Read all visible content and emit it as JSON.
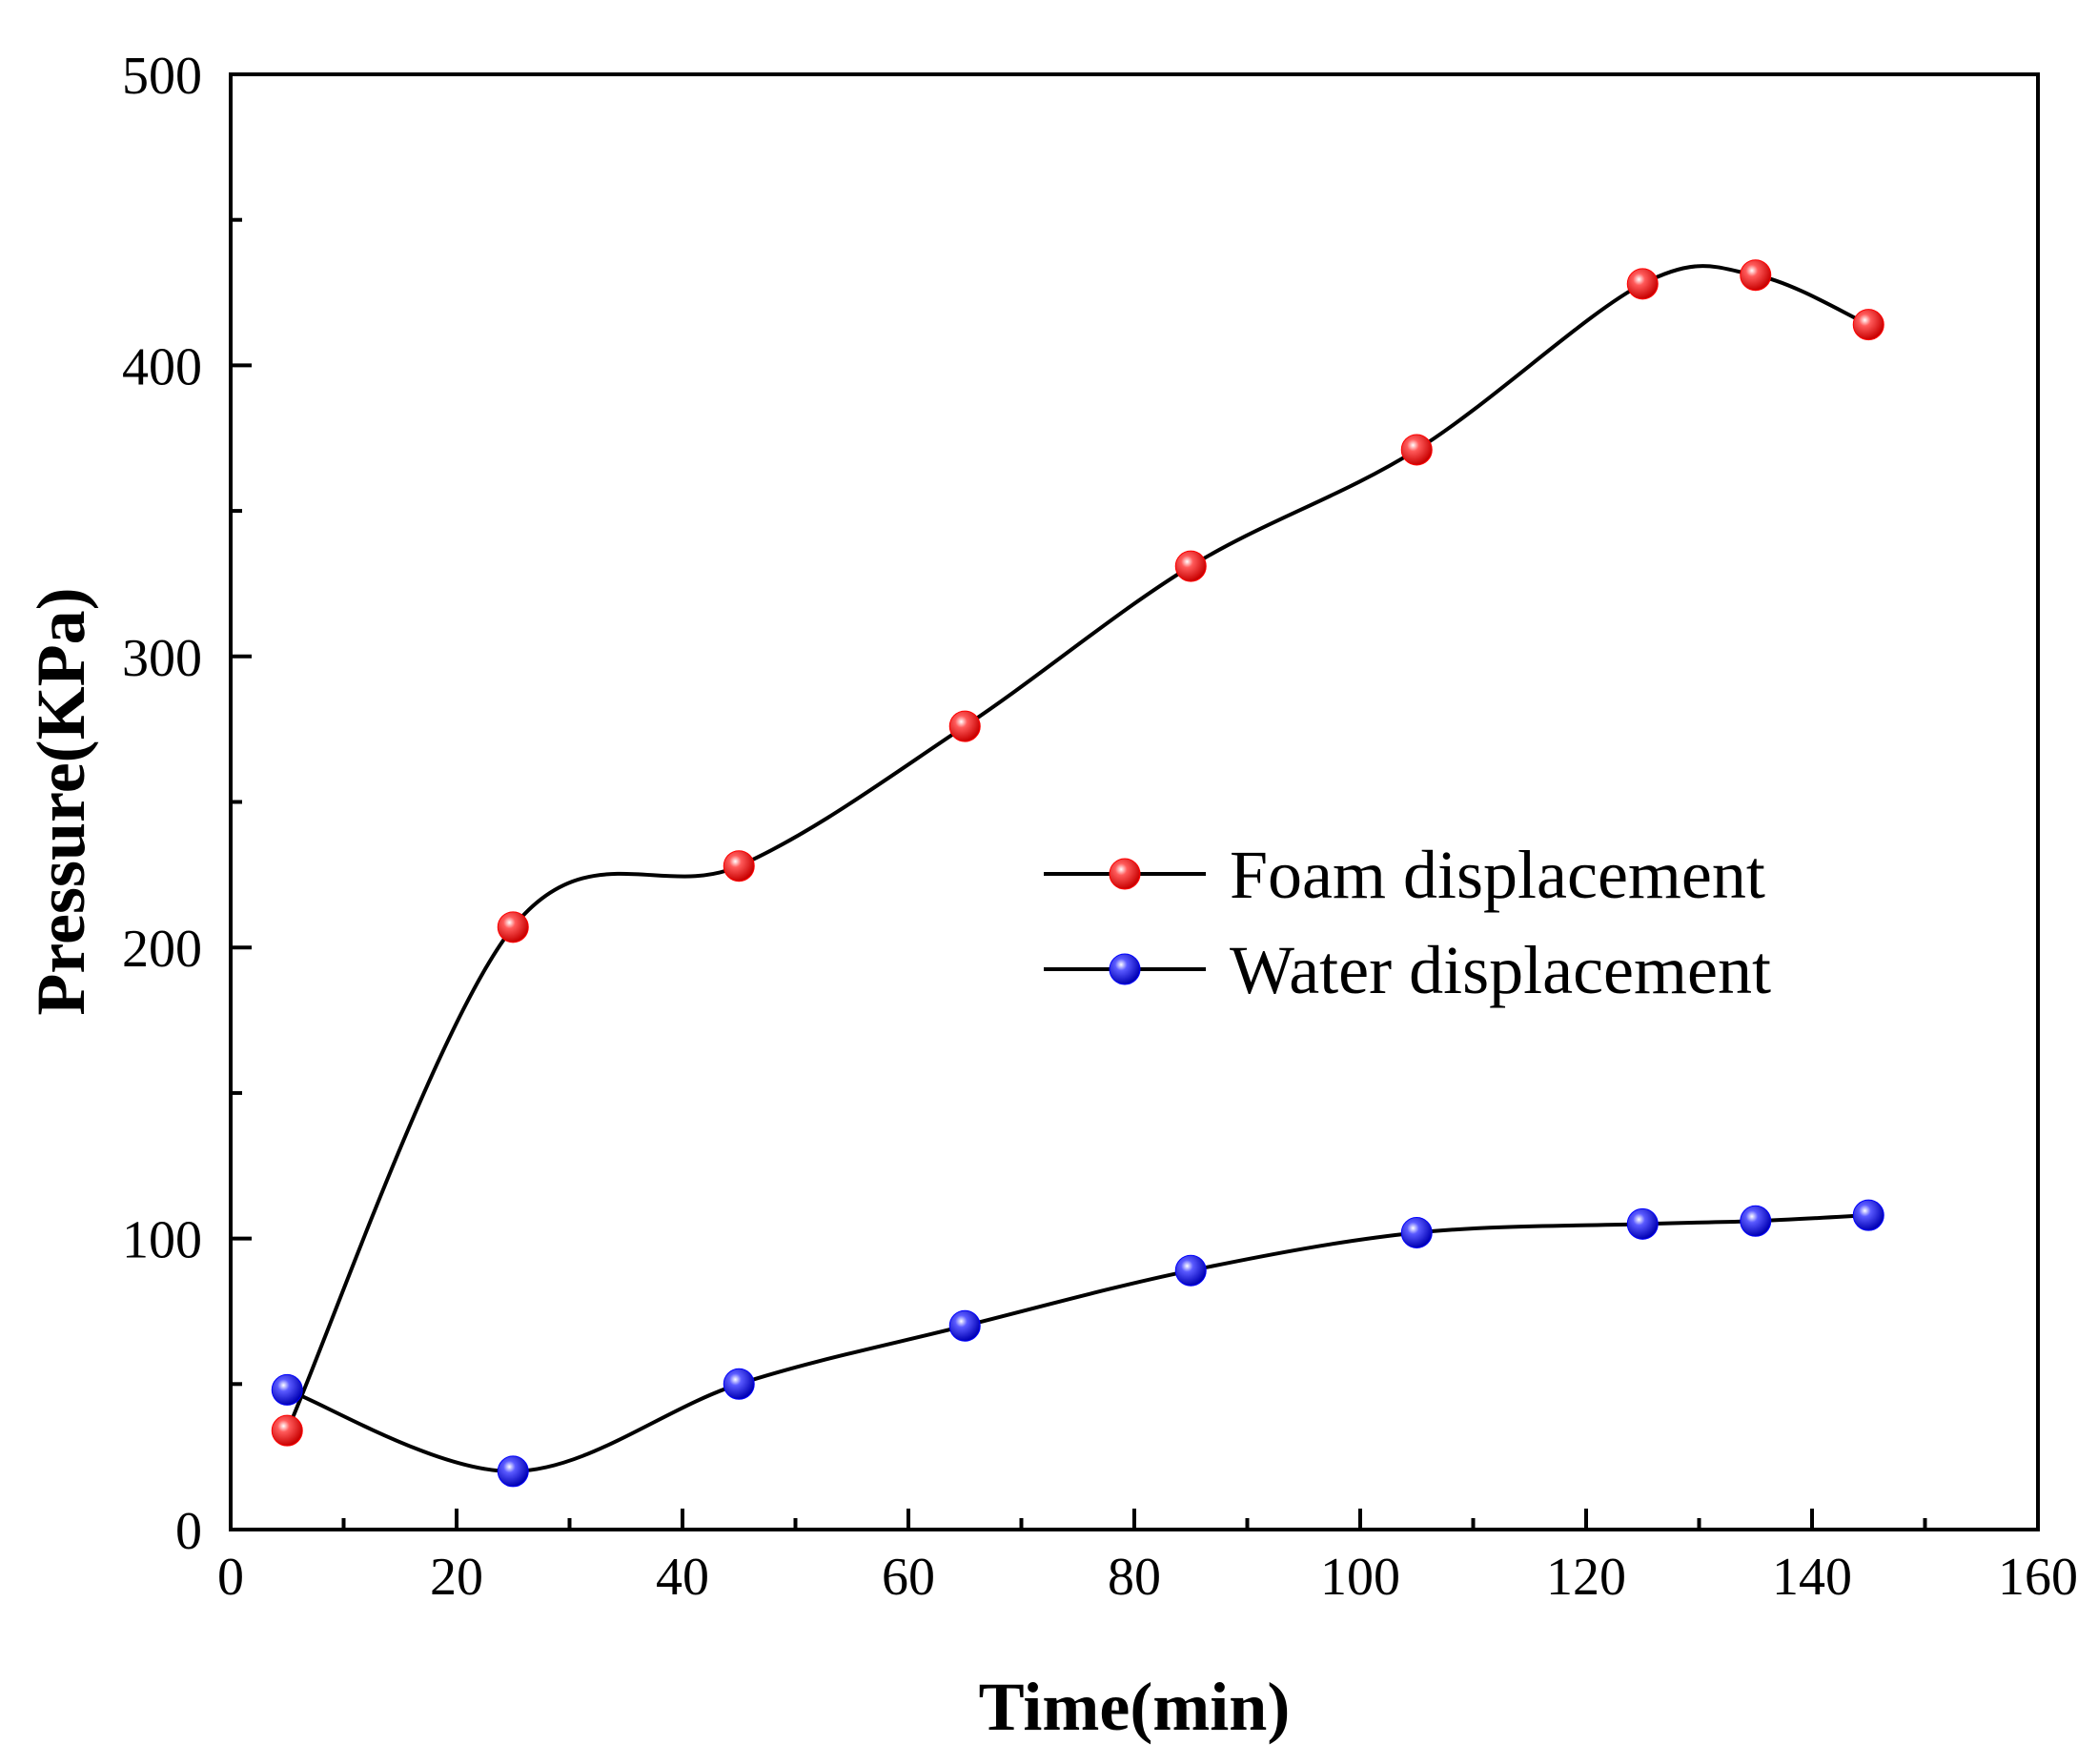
{
  "chart_data": {
    "type": "line",
    "title": "",
    "xlabel": "Time(min)",
    "ylabel": "Pressure(KPa)",
    "xlim": [
      0,
      160
    ],
    "ylim": [
      0,
      500
    ],
    "xticks": [
      0,
      20,
      40,
      60,
      80,
      100,
      120,
      140,
      160
    ],
    "yticks": [
      0,
      100,
      200,
      300,
      400,
      500
    ],
    "grid": false,
    "legend_position": "center-right",
    "series": [
      {
        "name": "Foam displacement",
        "marker_color": "#ff0000",
        "line_color": "#000000",
        "x": [
          5,
          25,
          45,
          65,
          85,
          105,
          125,
          135,
          145
        ],
        "values": [
          34,
          207,
          228,
          276,
          331,
          371,
          428,
          431,
          414
        ]
      },
      {
        "name": "Water displacement",
        "marker_color": "#0000ff",
        "line_color": "#000000",
        "x": [
          5,
          25,
          45,
          65,
          85,
          105,
          125,
          135,
          145
        ],
        "values": [
          48,
          20,
          50,
          70,
          89,
          102,
          105,
          106,
          108
        ]
      }
    ]
  }
}
